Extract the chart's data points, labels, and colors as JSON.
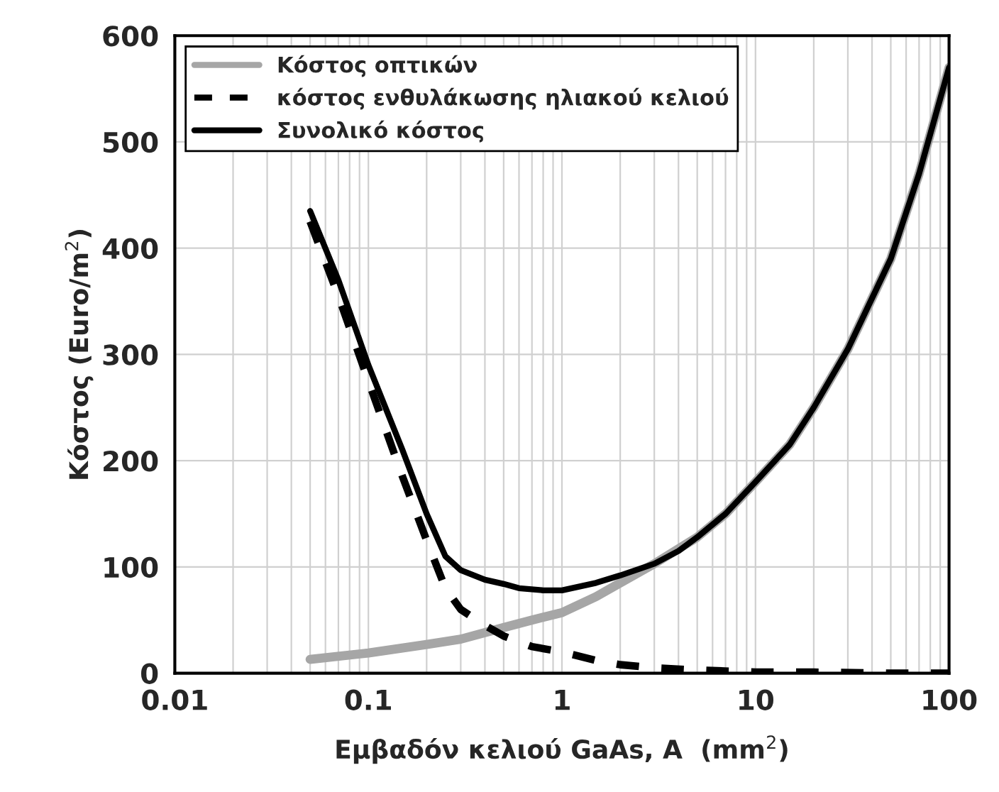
{
  "chart_data": {
    "type": "line",
    "xlabel": "Εμβαδόν κελιού GaAs, A  (mm$^{2}$)",
    "ylabel": "Κόστος (Euro/m$^{2}$)",
    "log": "x",
    "grid": true,
    "legend": "top left",
    "marker": "none",
    "xlim": [
      0.01,
      100
    ],
    "xticks": [
      0.01,
      0.1,
      1,
      10,
      100
    ],
    "ylim": [
      0,
      600
    ],
    "yticks": [
      0,
      100,
      200,
      300,
      400,
      500,
      600
    ],
    "series": [
      {
        "name": "Κόστος οπτικών",
        "color": "#a6a6a6",
        "line_style": "solid",
        "x": [
          0.05,
          0.1,
          0.2,
          0.3,
          0.5,
          0.7,
          1,
          1.5,
          2,
          3,
          5,
          7,
          10,
          15,
          20,
          30,
          50,
          70,
          100
        ],
        "values": [
          13,
          19,
          27,
          32,
          43,
          50,
          57,
          72,
          85,
          103,
          128,
          150,
          180,
          215,
          250,
          305,
          390,
          470,
          570
        ]
      },
      {
        "name": "κόστος ενθυλάκωσης ηλιακού κελιού",
        "color": "#000000",
        "line_style": "dashed",
        "x": [
          0.05,
          0.07,
          0.1,
          0.15,
          0.2,
          0.25,
          0.3,
          0.4,
          0.5,
          0.7,
          1,
          1.5,
          2,
          3,
          5,
          10,
          20,
          50,
          100
        ],
        "values": [
          425,
          355,
          275,
          185,
          125,
          80,
          60,
          45,
          35,
          25,
          20,
          12,
          8,
          5,
          3,
          1,
          1,
          0,
          0
        ]
      },
      {
        "name": "Συνολικό κόστος",
        "color": "#000000",
        "line_style": "solid",
        "x": [
          0.05,
          0.07,
          0.1,
          0.15,
          0.2,
          0.25,
          0.3,
          0.4,
          0.5,
          0.6,
          0.8,
          1,
          1.5,
          2,
          3,
          4,
          5,
          7,
          10,
          15,
          20,
          30,
          50,
          70,
          100
        ],
        "values": [
          435,
          370,
          290,
          210,
          150,
          110,
          97,
          88,
          84,
          80,
          78,
          78,
          85,
          92,
          103,
          115,
          128,
          150,
          180,
          215,
          250,
          305,
          390,
          470,
          570
        ]
      }
    ]
  }
}
